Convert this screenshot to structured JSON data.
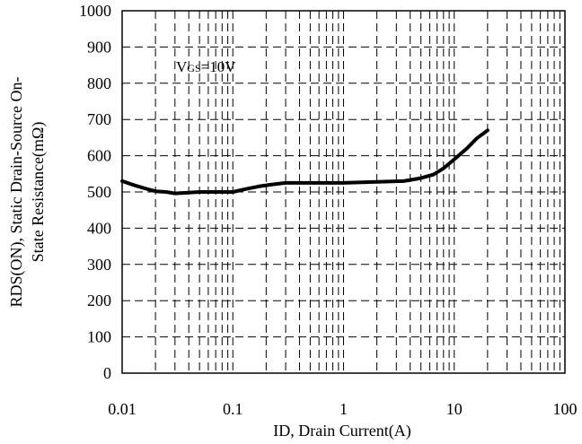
{
  "chart_data": {
    "type": "line",
    "xlabel": "ID, Drain Current(A)",
    "ylabel_lines": [
      "RDS(ON), Static Drain-Source On-",
      "State Resistance(mΩ)"
    ],
    "x_scale": "log",
    "xlim": [
      0.01,
      100
    ],
    "ylim": [
      0,
      1000
    ],
    "x_ticks": [
      0.01,
      0.1,
      1,
      10,
      100
    ],
    "x_tick_labels": [
      "0.01",
      "0.1",
      "1",
      "10",
      "100"
    ],
    "y_ticks": [
      0,
      100,
      200,
      300,
      400,
      500,
      600,
      700,
      800,
      900,
      1000
    ],
    "y_tick_labels": [
      "0",
      "100",
      "200",
      "300",
      "400",
      "500",
      "600",
      "700",
      "800",
      "900",
      "1000"
    ],
    "grid": true,
    "annotation": {
      "main": "V",
      "sub": "GS",
      "rest": "=10V"
    },
    "series": [
      {
        "x": [
          0.01,
          0.013,
          0.016,
          0.02,
          0.025,
          0.03,
          0.04,
          0.05,
          0.07,
          0.1,
          0.13,
          0.17,
          0.22,
          0.3,
          0.5,
          1,
          2,
          3.5,
          5,
          6.5,
          8,
          10,
          13,
          16,
          20
        ],
        "y": [
          530,
          518,
          510,
          502,
          500,
          496,
          498,
          500,
          500,
          500,
          508,
          515,
          520,
          525,
          525,
          525,
          528,
          530,
          538,
          548,
          565,
          590,
          620,
          648,
          670
        ]
      }
    ]
  }
}
